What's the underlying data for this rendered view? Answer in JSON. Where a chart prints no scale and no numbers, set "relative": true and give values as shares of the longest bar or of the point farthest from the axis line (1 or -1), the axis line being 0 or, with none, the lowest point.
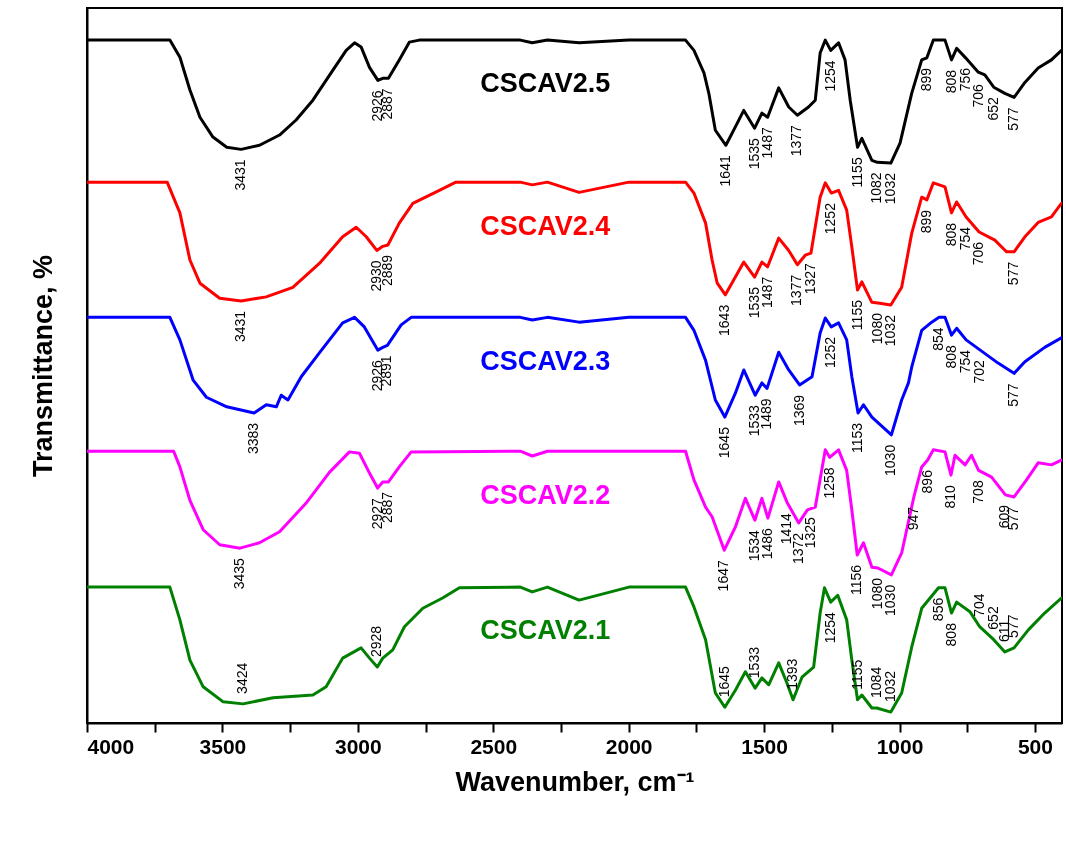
{
  "chart_data": {
    "type": "line",
    "xlabel": "Wavenumber, cm⁻¹",
    "ylabel": "Transmittance, %",
    "relative": true,
    "xlim": [
      4000,
      400
    ],
    "xticks": [
      4000,
      {
        "value": 3750,
        "label": null
      },
      3500,
      {
        "value": 3250,
        "label": null
      },
      3000,
      {
        "value": 2750,
        "label": null
      },
      2500,
      {
        "value": 2250,
        "label": null
      },
      2000,
      {
        "value": 1750,
        "label": null
      },
      1500,
      {
        "value": 1250,
        "label": null
      },
      1000,
      {
        "value": 750,
        "label": null
      },
      500
    ],
    "series": [
      {
        "name": "CSCAV2.5",
        "color": "#000000",
        "x": [
          4000,
          3694,
          3657,
          3620,
          3583,
          3535,
          3484,
          3431,
          3363,
          3289,
          3228,
          3166,
          3092,
          3043,
          3012,
          2988,
          2957,
          2926,
          2908,
          2887,
          2847,
          2810,
          2773,
          2400,
          2356,
          2300,
          2183,
          1999,
          1790,
          1759,
          1722,
          1704,
          1680,
          1641,
          1606,
          1575,
          1535,
          1508,
          1487,
          1446,
          1409,
          1377,
          1336,
          1311,
          1293,
          1274,
          1254,
          1225,
          1201,
          1182,
          1155,
          1139,
          1102,
          1082,
          1032,
          998,
          955,
          918,
          899,
          875,
          832,
          808,
          789,
          756,
          709,
          685,
          652,
          611,
          577,
          537,
          488,
          439,
          402
        ],
        "values": [
          1.0,
          1.0,
          0.975,
          0.927,
          0.887,
          0.858,
          0.843,
          0.84,
          0.846,
          0.861,
          0.883,
          0.912,
          0.956,
          0.985,
          0.996,
          0.99,
          0.96,
          0.941,
          0.944,
          0.944,
          0.971,
          0.997,
          1.0,
          1.0,
          0.996,
          1.0,
          0.996,
          1.0,
          1.0,
          0.985,
          0.952,
          0.922,
          0.868,
          0.846,
          0.873,
          0.897,
          0.871,
          0.893,
          0.887,
          0.93,
          0.902,
          0.89,
          0.902,
          0.912,
          0.981,
          1.0,
          0.985,
          0.996,
          0.971,
          0.912,
          0.843,
          0.856,
          0.824,
          0.821,
          0.82,
          0.849,
          0.922,
          0.971,
          0.974,
          1.0,
          1.0,
          0.971,
          0.988,
          0.974,
          0.953,
          0.949,
          0.931,
          0.922,
          0.916,
          0.938,
          0.959,
          0.971,
          0.985
        ]
      },
      {
        "name": "CSCAV2.4",
        "color": "#ff0000",
        "x": [
          4000,
          3704,
          3657,
          3620,
          3583,
          3510,
          3431,
          3338,
          3240,
          3142,
          3056,
          3006,
          2969,
          2930,
          2908,
          2889,
          2847,
          2797,
          2699,
          2638,
          2400,
          2356,
          2300,
          2183,
          1999,
          1790,
          1759,
          1716,
          1692,
          1673,
          1643,
          1606,
          1575,
          1535,
          1508,
          1487,
          1446,
          1409,
          1377,
          1348,
          1327,
          1293,
          1274,
          1252,
          1225,
          1195,
          1176,
          1155,
          1139,
          1102,
          1080,
          1032,
          992,
          955,
          918,
          899,
          875,
          832,
          808,
          789,
          754,
          706,
          648,
          605,
          577,
          537,
          488,
          439,
          402
        ],
        "values": [
          0.792,
          0.792,
          0.747,
          0.678,
          0.644,
          0.622,
          0.618,
          0.624,
          0.638,
          0.673,
          0.712,
          0.726,
          0.712,
          0.692,
          0.698,
          0.7,
          0.732,
          0.761,
          0.78,
          0.792,
          0.792,
          0.788,
          0.792,
          0.777,
          0.792,
          0.792,
          0.776,
          0.732,
          0.678,
          0.644,
          0.627,
          0.653,
          0.675,
          0.653,
          0.675,
          0.668,
          0.71,
          0.692,
          0.671,
          0.685,
          0.688,
          0.77,
          0.791,
          0.776,
          0.78,
          0.751,
          0.697,
          0.634,
          0.646,
          0.616,
          0.615,
          0.612,
          0.638,
          0.717,
          0.77,
          0.766,
          0.791,
          0.785,
          0.747,
          0.763,
          0.741,
          0.719,
          0.707,
          0.69,
          0.69,
          0.712,
          0.733,
          0.741,
          0.761
        ]
      },
      {
        "name": "CSCAV2.3",
        "color": "#0000ff",
        "x": [
          4000,
          3694,
          3657,
          3608,
          3559,
          3484,
          3383,
          3338,
          3301,
          3283,
          3258,
          3209,
          3142,
          3056,
          3012,
          2976,
          2926,
          2908,
          2891,
          2840,
          2803,
          2400,
          2356,
          2300,
          2183,
          1999,
          1790,
          1759,
          1716,
          1680,
          1645,
          1606,
          1575,
          1533,
          1508,
          1489,
          1446,
          1409,
          1369,
          1323,
          1293,
          1274,
          1252,
          1225,
          1195,
          1176,
          1153,
          1133,
          1102,
          1030,
          992,
          967,
          955,
          918,
          881,
          854,
          832,
          808,
          789,
          754,
          702,
          636,
          577,
          537,
          464,
          402
        ],
        "values": [
          0.594,
          0.594,
          0.561,
          0.502,
          0.477,
          0.463,
          0.454,
          0.466,
          0.463,
          0.48,
          0.473,
          0.507,
          0.542,
          0.586,
          0.594,
          0.58,
          0.546,
          0.55,
          0.553,
          0.583,
          0.594,
          0.594,
          0.59,
          0.594,
          0.587,
          0.594,
          0.594,
          0.575,
          0.531,
          0.473,
          0.448,
          0.483,
          0.517,
          0.48,
          0.498,
          0.49,
          0.543,
          0.517,
          0.495,
          0.507,
          0.571,
          0.593,
          0.58,
          0.586,
          0.561,
          0.507,
          0.454,
          0.466,
          0.448,
          0.422,
          0.473,
          0.498,
          0.521,
          0.575,
          0.587,
          0.594,
          0.594,
          0.568,
          0.578,
          0.561,
          0.546,
          0.527,
          0.512,
          0.529,
          0.55,
          0.564
        ]
      },
      {
        "name": "CSCAV2.2",
        "color": "#ff00ff",
        "x": [
          4000,
          3680,
          3657,
          3620,
          3571,
          3510,
          3435,
          3363,
          3289,
          3191,
          3105,
          3031,
          2994,
          2957,
          2927,
          2908,
          2887,
          2847,
          2803,
          2400,
          2356,
          2300,
          1790,
          1759,
          1716,
          1692,
          1647,
          1606,
          1569,
          1534,
          1508,
          1486,
          1446,
          1414,
          1372,
          1340,
          1311,
          1274,
          1258,
          1225,
          1195,
          1176,
          1156,
          1133,
          1102,
          1080,
          1030,
          992,
          947,
          918,
          896,
          875,
          832,
          810,
          795,
          758,
          734,
          708,
          660,
          609,
          577,
          531,
          488,
          439,
          402
        ],
        "values": [
          0.398,
          0.398,
          0.375,
          0.326,
          0.283,
          0.261,
          0.256,
          0.264,
          0.28,
          0.322,
          0.367,
          0.397,
          0.395,
          0.366,
          0.344,
          0.353,
          0.353,
          0.375,
          0.397,
          0.398,
          0.391,
          0.398,
          0.398,
          0.356,
          0.316,
          0.302,
          0.253,
          0.287,
          0.329,
          0.297,
          0.329,
          0.3,
          0.353,
          0.322,
          0.293,
          0.312,
          0.316,
          0.4,
          0.389,
          0.4,
          0.37,
          0.312,
          0.246,
          0.264,
          0.228,
          0.227,
          0.217,
          0.249,
          0.331,
          0.375,
          0.385,
          0.4,
          0.397,
          0.363,
          0.392,
          0.378,
          0.392,
          0.37,
          0.36,
          0.334,
          0.331,
          0.356,
          0.381,
          0.378,
          0.385
        ]
      },
      {
        "name": "CSCAV2.1",
        "color": "#008000",
        "x": [
          4000,
          3694,
          3657,
          3620,
          3571,
          3497,
          3424,
          3313,
          3166,
          3117,
          3056,
          2988,
          2957,
          2928,
          2908,
          2871,
          2828,
          2760,
          2687,
          2625,
          2400,
          2356,
          2300,
          2183,
          1999,
          1790,
          1759,
          1716,
          1680,
          1645,
          1606,
          1569,
          1533,
          1508,
          1483,
          1446,
          1416,
          1393,
          1360,
          1317,
          1293,
          1277,
          1254,
          1228,
          1195,
          1176,
          1155,
          1139,
          1102,
          1084,
          1032,
          992,
          955,
          918,
          856,
          832,
          808,
          789,
          740,
          704,
          652,
          611,
          577,
          525,
          464,
          402
        ],
        "values": [
          0.199,
          0.199,
          0.151,
          0.092,
          0.053,
          0.031,
          0.028,
          0.037,
          0.041,
          0.053,
          0.095,
          0.11,
          0.095,
          0.082,
          0.095,
          0.107,
          0.141,
          0.168,
          0.183,
          0.198,
          0.199,
          0.192,
          0.199,
          0.18,
          0.199,
          0.199,
          0.17,
          0.122,
          0.044,
          0.023,
          0.048,
          0.075,
          0.051,
          0.066,
          0.056,
          0.088,
          0.059,
          0.034,
          0.067,
          0.082,
          0.161,
          0.198,
          0.177,
          0.187,
          0.151,
          0.092,
          0.034,
          0.041,
          0.022,
          0.022,
          0.016,
          0.044,
          0.111,
          0.168,
          0.198,
          0.198,
          0.161,
          0.177,
          0.163,
          0.141,
          0.122,
          0.104,
          0.11,
          0.136,
          0.161,
          0.183
        ]
      }
    ],
    "annotations": [
      {
        "text": "3431",
        "x": 3431,
        "y": 0.84
      },
      {
        "text": "2926",
        "x": 2926,
        "y": 0.941
      },
      {
        "text": "2887",
        "x": 2887,
        "y": 0.944
      },
      {
        "text": "1641",
        "x": 1641,
        "y": 0.846
      },
      {
        "text": "1535",
        "x": 1535,
        "y": 0.871
      },
      {
        "text": "1487",
        "x": 1487,
        "y": 0.887
      },
      {
        "text": "1377",
        "x": 1377,
        "y": 0.89
      },
      {
        "text": "1254",
        "x": 1254,
        "y": 0.985
      },
      {
        "text": "1155",
        "x": 1155,
        "y": 0.843
      },
      {
        "text": "1082",
        "x": 1082,
        "y": 0.821
      },
      {
        "text": "1032",
        "x": 1032,
        "y": 0.82
      },
      {
        "text": "899",
        "x": 899,
        "y": 0.974
      },
      {
        "text": "808",
        "x": 808,
        "y": 0.971
      },
      {
        "text": "756",
        "x": 756,
        "y": 0.974
      },
      {
        "text": "706",
        "x": 706,
        "y": 0.95
      },
      {
        "text": "652",
        "x": 652,
        "y": 0.931
      },
      {
        "text": "577",
        "x": 577,
        "y": 0.916
      },
      {
        "text": "3431",
        "x": 3431,
        "y": 0.618
      },
      {
        "text": "2930",
        "x": 2930,
        "y": 0.692
      },
      {
        "text": "2889",
        "x": 2889,
        "y": 0.7
      },
      {
        "text": "1643",
        "x": 1643,
        "y": 0.627
      },
      {
        "text": "1535",
        "x": 1535,
        "y": 0.653
      },
      {
        "text": "1487",
        "x": 1487,
        "y": 0.668
      },
      {
        "text": "1377",
        "x": 1377,
        "y": 0.671
      },
      {
        "text": "1327",
        "x": 1327,
        "y": 0.688
      },
      {
        "text": "1252",
        "x": 1252,
        "y": 0.776
      },
      {
        "text": "1155",
        "x": 1155,
        "y": 0.634
      },
      {
        "text": "1080",
        "x": 1080,
        "y": 0.615
      },
      {
        "text": "1032",
        "x": 1032,
        "y": 0.612
      },
      {
        "text": "899",
        "x": 899,
        "y": 0.766
      },
      {
        "text": "808",
        "x": 808,
        "y": 0.747
      },
      {
        "text": "754",
        "x": 754,
        "y": 0.741
      },
      {
        "text": "706",
        "x": 706,
        "y": 0.719
      },
      {
        "text": "577",
        "x": 577,
        "y": 0.69
      },
      {
        "text": "3383",
        "x": 3383,
        "y": 0.454
      },
      {
        "text": "2926",
        "x": 2926,
        "y": 0.546
      },
      {
        "text": "2891",
        "x": 2891,
        "y": 0.553
      },
      {
        "text": "1645",
        "x": 1645,
        "y": 0.448
      },
      {
        "text": "1533",
        "x": 1533,
        "y": 0.48
      },
      {
        "text": "1489",
        "x": 1489,
        "y": 0.49
      },
      {
        "text": "1369",
        "x": 1369,
        "y": 0.495
      },
      {
        "text": "1252",
        "x": 1252,
        "y": 0.58
      },
      {
        "text": "1153",
        "x": 1153,
        "y": 0.454
      },
      {
        "text": "1030",
        "x": 1030,
        "y": 0.422
      },
      {
        "text": "854",
        "x": 854,
        "y": 0.594
      },
      {
        "text": "808",
        "x": 808,
        "y": 0.568
      },
      {
        "text": "754",
        "x": 754,
        "y": 0.561
      },
      {
        "text": "702",
        "x": 702,
        "y": 0.546
      },
      {
        "text": "577",
        "x": 577,
        "y": 0.512
      },
      {
        "text": "3435",
        "x": 3435,
        "y": 0.256
      },
      {
        "text": "2927",
        "x": 2927,
        "y": 0.344
      },
      {
        "text": "2887",
        "x": 2887,
        "y": 0.353
      },
      {
        "text": "1647",
        "x": 1647,
        "y": 0.253
      },
      {
        "text": "1534",
        "x": 1534,
        "y": 0.297
      },
      {
        "text": "1486",
        "x": 1486,
        "y": 0.3
      },
      {
        "text": "1414",
        "x": 1414,
        "y": 0.322
      },
      {
        "text": "1372",
        "x": 1372,
        "y": 0.293
      },
      {
        "text": "1325",
        "x": 1325,
        "y": 0.316
      },
      {
        "text": "1258",
        "x": 1258,
        "y": 0.389
      },
      {
        "text": "1156",
        "x": 1156,
        "y": 0.246
      },
      {
        "text": "1080",
        "x": 1080,
        "y": 0.227
      },
      {
        "text": "1030",
        "x": 1030,
        "y": 0.217
      },
      {
        "text": "947",
        "x": 947,
        "y": 0.331
      },
      {
        "text": "896",
        "x": 896,
        "y": 0.385
      },
      {
        "text": "810",
        "x": 810,
        "y": 0.363
      },
      {
        "text": "708",
        "x": 708,
        "y": 0.37
      },
      {
        "text": "609",
        "x": 609,
        "y": 0.334
      },
      {
        "text": "577",
        "x": 577,
        "y": 0.331
      },
      {
        "text": "3424",
        "x": 3424,
        "y": 0.028
      },
      {
        "text": "2928",
        "x": 2928,
        "y": 0.082
      },
      {
        "text": "1645",
        "x": 1645,
        "y": 0.023
      },
      {
        "text": "1533",
        "x": 1533,
        "y": 0.051
      },
      {
        "text": "1393",
        "x": 1393,
        "y": 0.034
      },
      {
        "text": "1254",
        "x": 1254,
        "y": 0.177
      },
      {
        "text": "1155",
        "x": 1155,
        "y": 0.034
      },
      {
        "text": "1084",
        "x": 1084,
        "y": 0.022
      },
      {
        "text": "1032",
        "x": 1032,
        "y": 0.016
      },
      {
        "text": "856",
        "x": 856,
        "y": 0.198
      },
      {
        "text": "808",
        "x": 808,
        "y": 0.161
      },
      {
        "text": "704",
        "x": 704,
        "y": 0.141
      },
      {
        "text": "652",
        "x": 652,
        "y": 0.122
      },
      {
        "text": "611",
        "x": 611,
        "y": 0.104
      },
      {
        "text": "577",
        "x": 577,
        "y": 0.11
      }
    ]
  }
}
